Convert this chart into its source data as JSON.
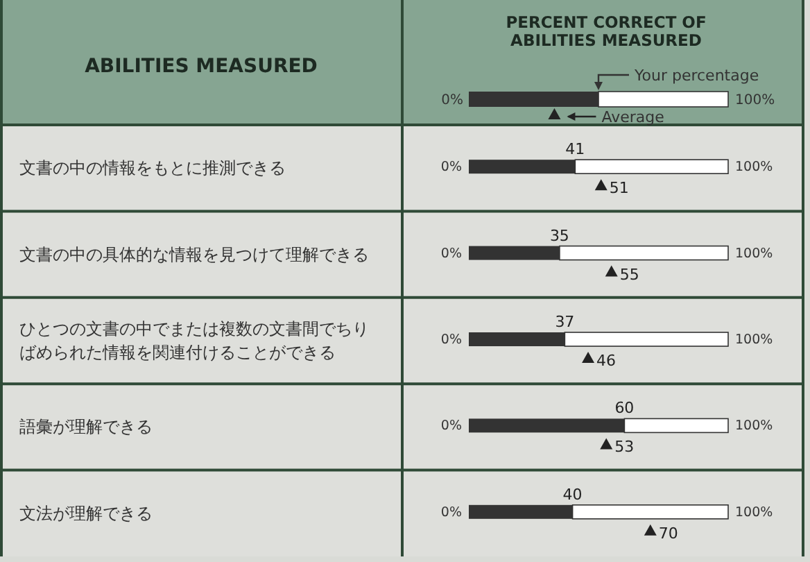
{
  "chart_data": {
    "type": "bar",
    "orientation": "horizontal",
    "title": "PERCENT CORRECT OF ABILITIES MEASURED",
    "ylabel": "ABILITIES MEASURED",
    "categories": [
      "文書の中の情報をもとに推測できる",
      "文書の中の具体的な情報を見つけて理解できる",
      "ひとつの文書の中でまたは複数の文書間でちりばめられた情報を関連付けることができる",
      "語彙が理解できる",
      "文法が理解できる"
    ],
    "series": [
      {
        "name": "Your percentage",
        "type": "bar",
        "color": "#333333",
        "values": [
          41,
          35,
          37,
          60,
          40
        ]
      },
      {
        "name": "Average",
        "type": "scatter",
        "marker": "triangle",
        "color": "#222222",
        "values": [
          51,
          55,
          46,
          53,
          70
        ]
      }
    ],
    "xlim": [
      0,
      100
    ],
    "annotations": [
      "0%",
      "100%"
    ],
    "data_labels": true,
    "legend": "top"
  }
}
